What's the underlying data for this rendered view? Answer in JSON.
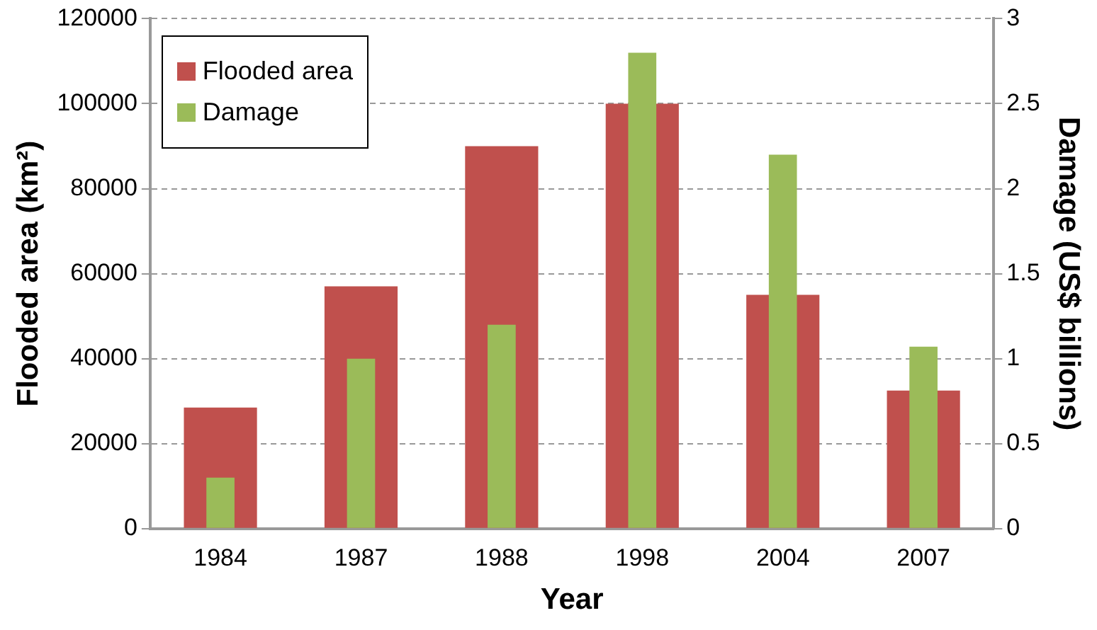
{
  "chart_data": {
    "type": "bar",
    "xlabel": "Year",
    "ylabel": "Flooded area (km²)",
    "y2label": "Damage (US$ billions)",
    "categories": [
      "1984",
      "1987",
      "1988",
      "1998",
      "2004",
      "2007"
    ],
    "series": [
      {
        "name": "Flooded area",
        "color": "#c0504d",
        "values": [
          28500,
          57000,
          90000,
          100000,
          55000,
          32500
        ]
      },
      {
        "name": "Damage",
        "color": "#9bbb59",
        "axis": "y2",
        "values": [
          0.3,
          1.0,
          1.2,
          2.8,
          2.2,
          1.07
        ]
      }
    ],
    "ylim": [
      0,
      120000
    ],
    "yticks": [
      0,
      20000,
      40000,
      60000,
      80000,
      100000,
      120000
    ],
    "y2lim": [
      0,
      3
    ],
    "y2ticks": [
      0,
      0.5,
      1,
      1.5,
      2,
      2.5,
      3
    ],
    "grid": "y",
    "legend": "top left"
  }
}
